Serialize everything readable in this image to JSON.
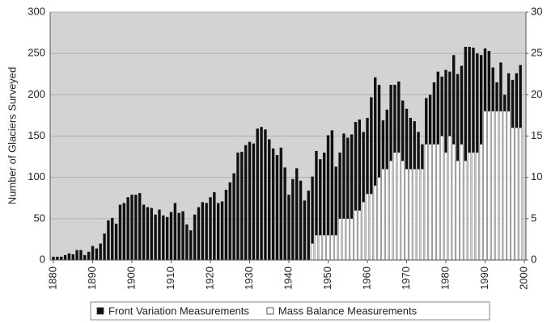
{
  "chart_data": {
    "type": "bar",
    "y_label": "Number of Glaciers Surveyed",
    "x": [
      1880,
      1881,
      1882,
      1883,
      1884,
      1885,
      1886,
      1887,
      1888,
      1889,
      1890,
      1891,
      1892,
      1893,
      1894,
      1895,
      1896,
      1897,
      1898,
      1899,
      1900,
      1901,
      1902,
      1903,
      1904,
      1905,
      1906,
      1907,
      1908,
      1909,
      1910,
      1911,
      1912,
      1913,
      1914,
      1915,
      1916,
      1917,
      1918,
      1919,
      1920,
      1921,
      1922,
      1923,
      1924,
      1925,
      1926,
      1927,
      1928,
      1929,
      1930,
      1931,
      1932,
      1933,
      1934,
      1935,
      1936,
      1937,
      1938,
      1939,
      1940,
      1941,
      1942,
      1943,
      1944,
      1945,
      1946,
      1947,
      1948,
      1949,
      1950,
      1951,
      1952,
      1953,
      1954,
      1955,
      1956,
      1957,
      1958,
      1959,
      1960,
      1961,
      1962,
      1963,
      1964,
      1965,
      1966,
      1967,
      1968,
      1969,
      1970,
      1971,
      1972,
      1973,
      1974,
      1975,
      1976,
      1977,
      1978,
      1979,
      1980,
      1981,
      1982,
      1983,
      1984,
      1985,
      1986,
      1987,
      1988,
      1989,
      1990,
      1991,
      1992,
      1993,
      1994,
      1995,
      1996,
      1997,
      1998,
      1999
    ],
    "series": [
      {
        "name": "Front Variation Measurements",
        "color": "#111111",
        "axis": "y",
        "values": [
          4,
          4,
          4,
          6,
          8,
          7,
          12,
          12,
          6,
          10,
          17,
          14,
          20,
          32,
          48,
          51,
          44,
          67,
          69,
          76,
          79,
          79,
          81,
          67,
          64,
          63,
          55,
          61,
          54,
          52,
          58,
          69,
          57,
          59,
          43,
          36,
          55,
          64,
          70,
          69,
          76,
          82,
          69,
          71,
          85,
          94,
          105,
          130,
          131,
          139,
          143,
          141,
          159,
          161,
          158,
          146,
          135,
          127,
          136,
          112,
          79,
          98,
          111,
          96,
          72,
          84,
          101,
          132,
          122,
          130,
          151,
          157,
          113,
          130,
          153,
          148,
          152,
          167,
          170,
          155,
          172,
          197,
          221,
          212,
          169,
          182,
          212,
          212,
          216,
          193,
          183,
          172,
          168,
          155,
          140,
          196,
          200,
          215,
          228,
          222,
          230,
          228,
          248,
          225,
          235,
          258,
          258,
          257,
          250,
          248,
          256,
          253,
          233,
          215,
          239,
          200,
          226,
          218,
          226,
          236
        ]
      },
      {
        "name": "Mass Balance Measurements",
        "color": "#ffffff",
        "axis": "y2",
        "values": [
          null,
          null,
          null,
          null,
          null,
          null,
          null,
          null,
          null,
          null,
          null,
          null,
          null,
          null,
          null,
          null,
          null,
          null,
          null,
          null,
          null,
          null,
          null,
          null,
          null,
          null,
          null,
          null,
          null,
          null,
          null,
          null,
          null,
          null,
          null,
          null,
          null,
          null,
          null,
          null,
          null,
          null,
          null,
          null,
          null,
          null,
          null,
          null,
          null,
          null,
          null,
          null,
          null,
          null,
          null,
          null,
          null,
          null,
          null,
          null,
          null,
          null,
          null,
          null,
          null,
          null,
          2,
          3,
          3,
          3,
          3,
          3,
          3,
          5,
          5,
          5,
          5,
          6,
          6,
          7,
          8,
          8,
          9,
          10,
          11,
          11,
          12,
          13,
          13,
          12,
          11,
          11,
          11,
          11,
          11,
          14,
          14,
          14,
          14,
          15,
          13,
          15,
          14,
          12,
          14,
          12,
          13,
          13,
          13,
          14,
          18,
          18,
          18,
          18,
          18,
          18,
          18,
          16,
          16,
          16
        ]
      }
    ],
    "xlim": [
      1880,
      2000
    ],
    "xticks": [
      1880,
      1890,
      1900,
      1910,
      1920,
      1930,
      1940,
      1950,
      1960,
      1970,
      1980,
      1990,
      2000
    ],
    "ylim": [
      0,
      300
    ],
    "yticks": [
      0,
      50,
      100,
      150,
      200,
      250,
      300
    ],
    "y2lim": [
      0,
      30
    ],
    "y2ticks": [
      0,
      5,
      10,
      15,
      20,
      25,
      30
    ],
    "grid": true,
    "legend": "bottom"
  }
}
